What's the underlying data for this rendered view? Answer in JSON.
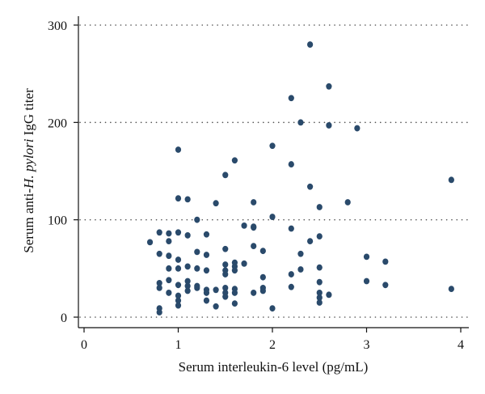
{
  "chart_data": {
    "type": "scatter",
    "xlabel": "Serum interleukin-6 level (pg/mL)",
    "ylabel": {
      "before": "Serum anti-",
      "italic": "H. pylori",
      "after": " IgG titer"
    },
    "xlim": [
      0,
      4
    ],
    "ylim": [
      0,
      300
    ],
    "x_ticks": [
      0,
      1,
      2,
      3,
      4
    ],
    "y_ticks": [
      0,
      100,
      200,
      300
    ],
    "grid": "horizontal dotted",
    "marker_color": "#2a4a6b",
    "points": [
      [
        0.7,
        77
      ],
      [
        0.8,
        87
      ],
      [
        0.8,
        65
      ],
      [
        0.8,
        35
      ],
      [
        0.8,
        30
      ],
      [
        0.8,
        9
      ],
      [
        0.8,
        5
      ],
      [
        0.9,
        86
      ],
      [
        0.9,
        78
      ],
      [
        0.9,
        63
      ],
      [
        0.9,
        50
      ],
      [
        0.9,
        38
      ],
      [
        0.9,
        25
      ],
      [
        1.0,
        172
      ],
      [
        1.0,
        122
      ],
      [
        1.0,
        87
      ],
      [
        1.0,
        59
      ],
      [
        1.0,
        50
      ],
      [
        1.0,
        33
      ],
      [
        1.0,
        22
      ],
      [
        1.0,
        17
      ],
      [
        1.0,
        12
      ],
      [
        1.1,
        121
      ],
      [
        1.1,
        84
      ],
      [
        1.1,
        52
      ],
      [
        1.1,
        37
      ],
      [
        1.1,
        32
      ],
      [
        1.1,
        27
      ],
      [
        1.2,
        100
      ],
      [
        1.2,
        67
      ],
      [
        1.2,
        50
      ],
      [
        1.2,
        32
      ],
      [
        1.2,
        30
      ],
      [
        1.3,
        85
      ],
      [
        1.3,
        64
      ],
      [
        1.3,
        48
      ],
      [
        1.3,
        28
      ],
      [
        1.3,
        25
      ],
      [
        1.3,
        17
      ],
      [
        1.4,
        117
      ],
      [
        1.4,
        28
      ],
      [
        1.4,
        11
      ],
      [
        1.5,
        146
      ],
      [
        1.5,
        70
      ],
      [
        1.5,
        54
      ],
      [
        1.5,
        48
      ],
      [
        1.5,
        44
      ],
      [
        1.5,
        30
      ],
      [
        1.5,
        25
      ],
      [
        1.5,
        21
      ],
      [
        1.6,
        161
      ],
      [
        1.6,
        56
      ],
      [
        1.6,
        52
      ],
      [
        1.6,
        48
      ],
      [
        1.6,
        29
      ],
      [
        1.6,
        25
      ],
      [
        1.6,
        14
      ],
      [
        1.7,
        94
      ],
      [
        1.7,
        55
      ],
      [
        1.8,
        118
      ],
      [
        1.8,
        93
      ],
      [
        1.8,
        92
      ],
      [
        1.8,
        73
      ],
      [
        1.8,
        25
      ],
      [
        1.9,
        68
      ],
      [
        1.9,
        41
      ],
      [
        1.9,
        30
      ],
      [
        1.9,
        27
      ],
      [
        2.0,
        176
      ],
      [
        2.0,
        103
      ],
      [
        2.0,
        9
      ],
      [
        2.2,
        225
      ],
      [
        2.2,
        157
      ],
      [
        2.2,
        91
      ],
      [
        2.2,
        44
      ],
      [
        2.2,
        31
      ],
      [
        2.3,
        200
      ],
      [
        2.3,
        65
      ],
      [
        2.3,
        49
      ],
      [
        2.4,
        280
      ],
      [
        2.4,
        134
      ],
      [
        2.4,
        78
      ],
      [
        2.5,
        113
      ],
      [
        2.5,
        83
      ],
      [
        2.5,
        51
      ],
      [
        2.5,
        36
      ],
      [
        2.5,
        25
      ],
      [
        2.5,
        20
      ],
      [
        2.5,
        15
      ],
      [
        2.6,
        237
      ],
      [
        2.6,
        197
      ],
      [
        2.6,
        23
      ],
      [
        2.8,
        118
      ],
      [
        2.9,
        194
      ],
      [
        3.0,
        62
      ],
      [
        3.0,
        37
      ],
      [
        3.2,
        57
      ],
      [
        3.2,
        33
      ],
      [
        3.9,
        141
      ],
      [
        3.9,
        29
      ]
    ]
  }
}
